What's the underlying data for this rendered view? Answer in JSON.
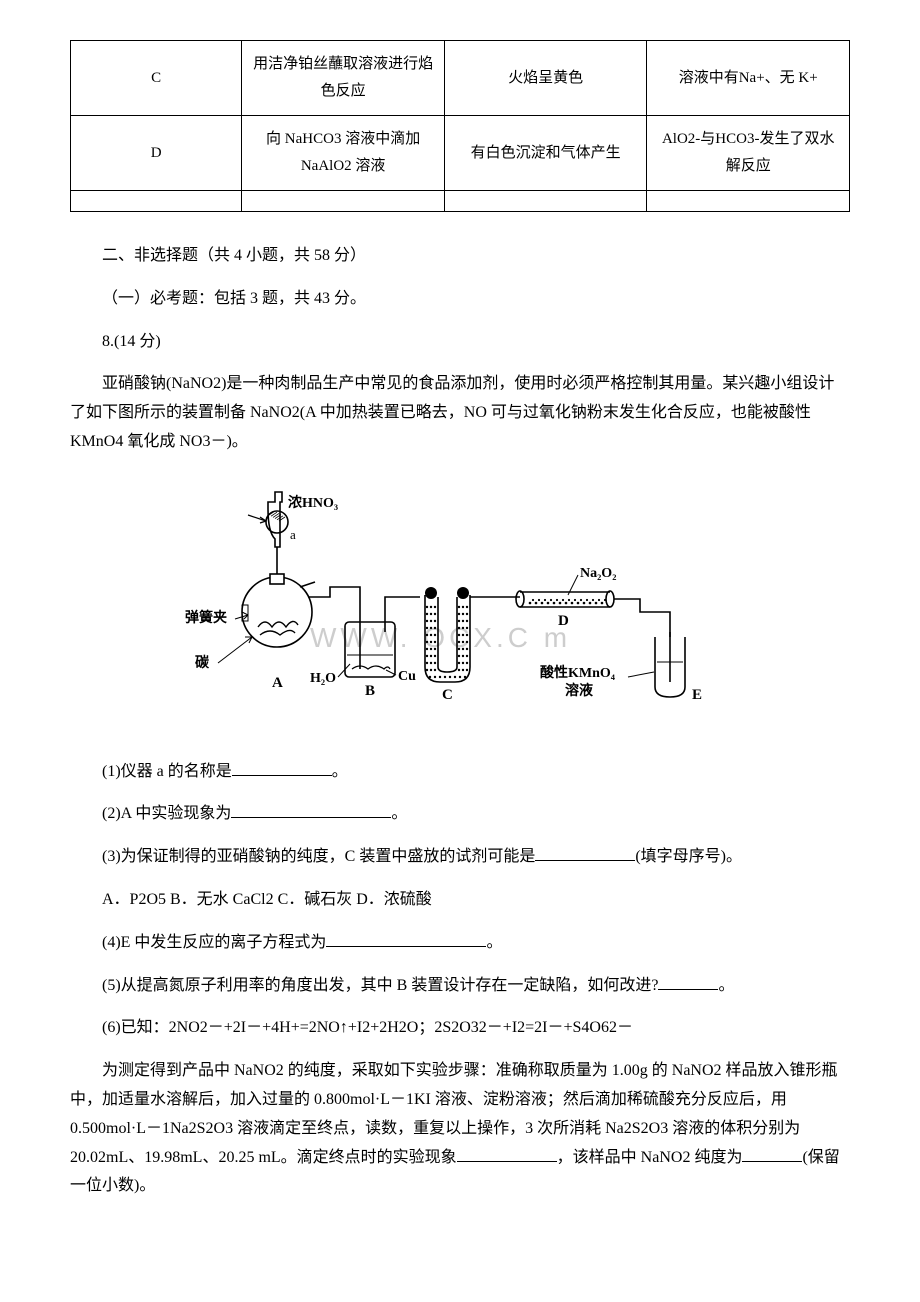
{
  "table": {
    "columns_count": 4,
    "rows": [
      {
        "label": "C",
        "op": "用洁净铂丝蘸取溶液进行焰色反应",
        "pheno": "火焰呈黄色",
        "conc": "溶液中有Na+、无 K+"
      },
      {
        "label": "D",
        "op": "向 NaHCO3 溶液中滴加 NaAlO2 溶液",
        "pheno": "有白色沉淀和气体产生",
        "conc": "AlO2-与HCO3-发生了双水解反应"
      },
      {
        "label": "",
        "op": "",
        "pheno": "",
        "conc": ""
      }
    ],
    "col_widths": [
      "22%",
      "26%",
      "26%",
      "26%"
    ]
  },
  "section2": "二、非选择题（共 4 小题，共 58 分）",
  "subsection1": "（一）必考题：包括 3 题，共 43 分。",
  "q8_title": "8.(14 分)",
  "q8_intro": "亚硝酸钠(NaNO2)是一种肉制品生产中常见的食品添加剂，使用时必须严格控制其用量。某兴趣小组设计了如下图所示的装置制备 NaNO2(A 中加热装置已略去，NO 可与过氧化钠粉末发生化合反应，也能被酸性 KMnO4 氧化成 NO3－)。",
  "diagram": {
    "labels": {
      "hno3": "浓HNO₃",
      "a_small": "a",
      "spring_clamp": "弹簧夹",
      "carbon": "碳",
      "A": "A",
      "B": "B",
      "h2o": "H₂O",
      "cu": "Cu",
      "C": "C",
      "D": "D",
      "na2o2": "Na₂O₂",
      "kmno4": "酸性KMnO₄溶液",
      "E": "E"
    },
    "watermark": "WWW.  OCX.C  m",
    "colors": {
      "line": "#000000",
      "fill_light": "#ffffff",
      "dots": "#000000",
      "watermark": "#dcdcdc",
      "liquid": "#ffffff"
    },
    "line_width": 1.6
  },
  "q8_sub1_pre": "(1)仪器 a 的名称是",
  "q8_sub1_post": "。",
  "q8_sub2_pre": "(2)A 中实验现象为",
  "q8_sub2_post": "。",
  "q8_sub3_pre": "(3)为保证制得的亚硝酸钠的纯度，C 装置中盛放的试剂可能是",
  "q8_sub3_post": "(填字母序号)。",
  "q8_sub3_opts": "A．P2O5  B．无水 CaCl2  C．碱石灰  D．浓硫酸",
  "q8_sub4_pre": "(4)E 中发生反应的离子方程式为",
  "q8_sub4_post": "。",
  "q8_sub5_pre": "(5)从提高氮原子利用率的角度出发，其中 B 装置设计存在一定缺陷，如何改进?",
  "q8_sub5_post": "。",
  "q8_sub6": "(6)已知：2NO2－+2I－+4H+=2NO↑+I2+2H2O；2S2O32－+I2=2I－+S4O62－",
  "q8_para2_a": "为测定得到产品中 NaNO2 的纯度，采取如下实验步骤：准确称取质量为 1.00g 的 NaNO2 样品放入锥形瓶中，加适量水溶解后，加入过量的 0.800mol·L－1KI 溶液、淀粉溶液；然后滴加稀硫酸充分反应后，用 0.500mol·L－1Na2S2O3 溶液滴定至终点，读数，重复以上操作，3 次所消耗 Na2S2O3 溶液的体积分别为 20.02mL、19.98mL、20.25 mL。滴定终点时的实验现象",
  "q8_para2_b": "，该样品中 NaNO2 纯度为",
  "q8_para2_c": "(保留一位小数)。"
}
